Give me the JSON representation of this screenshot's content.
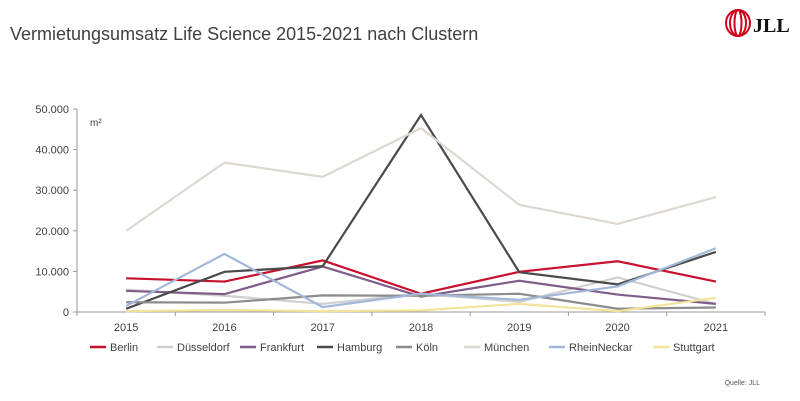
{
  "header": {
    "title": "Vermietungsumsatz Life Science 2015-2021 nach Clustern",
    "logo_text": "JLL"
  },
  "footer": {
    "source": "Quelle: JLL"
  },
  "chart_data": {
    "type": "line",
    "title": "Vermietungsumsatz Life Science 2015-2021 nach Clustern",
    "ylabel": "m²",
    "xlabel": "",
    "ylim": [
      0,
      50000
    ],
    "y_ticks": [
      "0",
      "10.000",
      "20.000",
      "30.000",
      "40.000",
      "50.000"
    ],
    "y_tick_values": [
      0,
      10000,
      20000,
      30000,
      40000,
      50000
    ],
    "categories": [
      "2015",
      "2016",
      "2017",
      "2018",
      "2019",
      "2020",
      "2021"
    ],
    "grid": false,
    "legend": "bottom",
    "series": [
      {
        "name": "Berlin",
        "color": "#c8102e",
        "values": [
          8300,
          7500,
          12700,
          4500,
          9900,
          12500,
          7500
        ]
      },
      {
        "name": "Düsseldorf",
        "color": "#d0d0d0",
        "values": [
          5500,
          4000,
          2000,
          4500,
          2500,
          8500,
          2000
        ]
      },
      {
        "name": "Frankfurt",
        "color": "#7f5d8a",
        "values": [
          5200,
          4400,
          11200,
          3800,
          7700,
          4300,
          2000
        ]
      },
      {
        "name": "Hamburg",
        "color": "#4a4a4a",
        "values": [
          800,
          9900,
          11300,
          48500,
          9800,
          6800,
          14800
        ]
      },
      {
        "name": "Köln",
        "color": "#8c8c8c",
        "values": [
          2400,
          2300,
          4100,
          4000,
          4500,
          800,
          1100
        ]
      },
      {
        "name": "München",
        "color": "#ddd8cf",
        "values": [
          20000,
          36800,
          33300,
          45300,
          26400,
          21700,
          28300
        ]
      },
      {
        "name": "RheinNeckar",
        "color": "#a3b8d9",
        "values": [
          1500,
          14300,
          1200,
          4500,
          3000,
          6300,
          15700
        ]
      },
      {
        "name": "Stuttgart",
        "color": "#f3e39a",
        "values": [
          200,
          500,
          200,
          400,
          2000,
          200,
          3500
        ]
      }
    ]
  }
}
